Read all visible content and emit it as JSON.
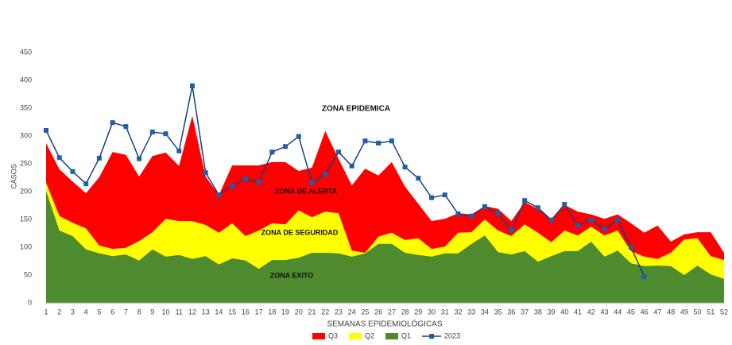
{
  "chart_data": {
    "type": "area",
    "annotations": [
      "ZONA EPIDEMICA",
      "ZONA DE ALERTA",
      "ZONA DE SEGURIDAD",
      "ZONA EXITO"
    ],
    "y_label": "CASOS",
    "x_label": "SEMANAS EPIDEMIOLÓGICAS",
    "x": [
      1,
      2,
      3,
      4,
      5,
      6,
      7,
      8,
      9,
      10,
      11,
      12,
      13,
      14,
      15,
      16,
      17,
      18,
      19,
      20,
      21,
      22,
      23,
      24,
      25,
      26,
      27,
      28,
      29,
      30,
      31,
      32,
      33,
      34,
      35,
      36,
      37,
      38,
      39,
      40,
      41,
      42,
      43,
      44,
      45,
      46,
      47,
      48,
      49,
      50,
      51,
      52
    ],
    "xlim": [
      1,
      52
    ],
    "ylim": [
      0,
      450
    ],
    "yticks": [
      0,
      50,
      100,
      150,
      200,
      250,
      300,
      350,
      400,
      450
    ],
    "series": [
      {
        "name": "Q3",
        "color": "#ff0000",
        "values": [
          287,
          240,
          218,
          197,
          226,
          271,
          266,
          227,
          264,
          270,
          246,
          336,
          227,
          194,
          247,
          247,
          247,
          253,
          253,
          237,
          243,
          309,
          259,
          211,
          241,
          229,
          253,
          209,
          178,
          147,
          151,
          161,
          159,
          174,
          169,
          147,
          181,
          169,
          150,
          176,
          164,
          159,
          151,
          159,
          143,
          126,
          139,
          110,
          123,
          127,
          127,
          90
        ]
      },
      {
        "name": "Q2",
        "color": "#ffff00",
        "values": [
          216,
          156,
          144,
          134,
          103,
          97,
          99,
          111,
          127,
          151,
          147,
          147,
          140,
          126,
          143,
          120,
          130,
          143,
          141,
          166,
          154,
          164,
          161,
          94,
          90,
          119,
          126,
          113,
          116,
          97,
          101,
          126,
          127,
          150,
          130,
          120,
          141,
          126,
          109,
          130,
          121,
          137,
          121,
          130,
          93,
          83,
          79,
          90,
          114,
          116,
          84,
          77
        ]
      },
      {
        "name": "Q1",
        "color": "#4e8a2e",
        "values": [
          201,
          130,
          120,
          96,
          89,
          84,
          87,
          76,
          96,
          83,
          86,
          79,
          84,
          69,
          80,
          76,
          61,
          77,
          77,
          81,
          90,
          90,
          89,
          83,
          89,
          106,
          106,
          90,
          86,
          83,
          89,
          89,
          106,
          121,
          91,
          87,
          93,
          74,
          84,
          93,
          93,
          110,
          83,
          94,
          71,
          66,
          67,
          66,
          50,
          67,
          51,
          43
        ]
      },
      {
        "name": "2023",
        "type": "line",
        "color": "#1f5fa8",
        "values": [
          310,
          261,
          236,
          214,
          260,
          324,
          317,
          259,
          307,
          304,
          273,
          390,
          234,
          194,
          210,
          223,
          216,
          271,
          281,
          299,
          216,
          231,
          271,
          246,
          291,
          287,
          291,
          244,
          224,
          189,
          194,
          160,
          156,
          173,
          161,
          130,
          184,
          171,
          149,
          177,
          139,
          149,
          133,
          149,
          100,
          47,
          null,
          null,
          null,
          null,
          null,
          null
        ]
      }
    ]
  }
}
